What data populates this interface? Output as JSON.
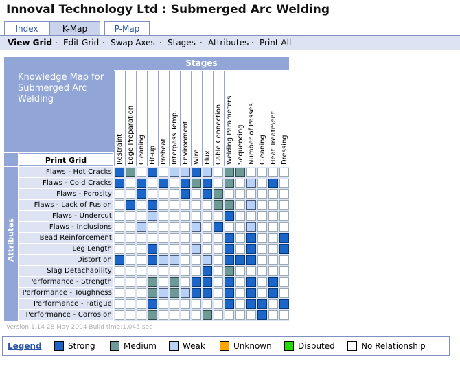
{
  "title": "Innoval Technology Ltd : Submerged Arc Welding",
  "tabs": [
    {
      "label": "Index",
      "active": false
    },
    {
      "label": "K-Map",
      "active": true
    },
    {
      "label": "P-Map",
      "active": false
    }
  ],
  "subnav": {
    "items": [
      "View Grid",
      "Edit Grid",
      "Swap Axes",
      "Stages",
      "Attributes",
      "Print All"
    ],
    "active": "View Grid",
    "separator": "·"
  },
  "kmap": {
    "heading": "Knowledge Map for Submerged Arc Welding",
    "print_grid_label": "Print Grid",
    "stages_label": "Stages",
    "attributes_label": "Attributes",
    "stages": [
      "Restraint",
      "Edge Preparation",
      "Cleaning",
      "Fit-up",
      "Preheat",
      "Interpass Temp.",
      "Environment",
      "Wire",
      "Flux",
      "Cable Connection",
      "Welding Parameters",
      "Sequencing",
      "Number of Passes",
      "Cleaning",
      "Heat Treatment",
      "Dressing"
    ],
    "attributes": [
      "Flaws - Hot Cracks",
      "Flaws - Cold Cracks",
      "Flaws - Porosity",
      "Flaws - Lack of Fusion",
      "Flaws - Undercut",
      "Flaws - Inclusions",
      "Bead Reinforcement",
      "Leg Length",
      "Distortion",
      "Slag Detachability",
      "Performance - Strength",
      "Performance - Toughness",
      "Performance - Fatigue",
      "Performance - Corrosion"
    ],
    "grid": [
      "SM.S.WWSW.MM....",
      "S.S.S.SMS.M.W.S.",
      "..S...S.SM......",
      ".S.S.....MM.W...",
      "...W......S.....",
      "..W....W.S..W...",
      "..........S.S..S",
      "...S...W..S.S..S",
      "S..SWW..W.SSS...",
      "........S.M.....",
      "...M.M.SS.S.S.S.",
      "...MWMWSS.S.S.S.",
      "...S......S.SS.S",
      "...M....M....S.."
    ],
    "legend_codes": {
      "S": "Strong",
      "M": "Medium",
      "W": "Weak",
      ".": "No Relationship"
    }
  },
  "version_text": "Version 1.14   28 May 2004   Build time:1.045 sec",
  "legend": {
    "title": "Legend",
    "items": [
      {
        "label": "Strong",
        "color": "#1b66c8"
      },
      {
        "label": "Medium",
        "color": "#6d9a96"
      },
      {
        "label": "Weak",
        "color": "#b8d2f7"
      },
      {
        "label": "Unknown",
        "color": "#ffa500"
      },
      {
        "label": "Disputed",
        "color": "#22dd00"
      },
      {
        "label": "No Relationship",
        "color": "#ffffff"
      }
    ]
  }
}
